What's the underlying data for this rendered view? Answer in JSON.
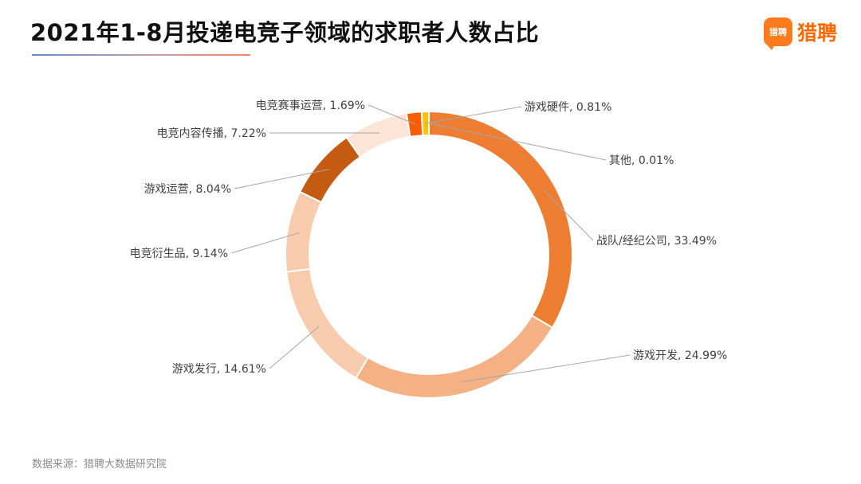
{
  "header": {
    "title": "2021年1-8月投递电竞子领域的求职者人数占比",
    "logo_mark": "猎聘",
    "logo_text": "猎聘"
  },
  "footer": {
    "source": "数据来源：猎聘大数据研究院"
  },
  "chart_data": {
    "type": "pie",
    "variant": "donut",
    "title": "2021年1-8月投递电竞子领域的求职者人数占比",
    "categories": [
      "其他",
      "战队/经纪公司",
      "游戏开发",
      "游戏发行",
      "电竞衍生品",
      "游戏运营",
      "电竞内容传播",
      "电竞赛事运营",
      "游戏硬件"
    ],
    "values": [
      0.01,
      33.49,
      24.99,
      14.61,
      9.14,
      8.04,
      7.22,
      1.69,
      0.81
    ],
    "labels": [
      "其他, 0.01%",
      "战队/经纪公司, 33.49%",
      "游戏开发, 24.99%",
      "游戏发行, 14.61%",
      "电竞衍生品, 9.14%",
      "游戏运营, 8.04%",
      "电竞内容传播, 7.22%",
      "电竞赛事运营, 1.69%",
      "游戏硬件, 0.81%"
    ],
    "colors": [
      "#e07b39",
      "#ed7d31",
      "#f4b183",
      "#f8cbad",
      "#f8cbad",
      "#c55a11",
      "#fce4d6",
      "#ff5b00",
      "#ffc000"
    ],
    "unit": "%",
    "legend": "none"
  }
}
